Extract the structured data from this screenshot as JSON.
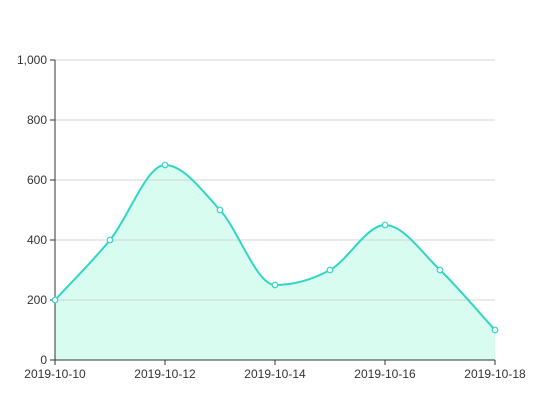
{
  "chart_data": {
    "type": "area",
    "title": "",
    "xlabel": "",
    "ylabel": "",
    "x": [
      "2019-10-10",
      "2019-10-11",
      "2019-10-12",
      "2019-10-13",
      "2019-10-14",
      "2019-10-15",
      "2019-10-16",
      "2019-10-17",
      "2019-10-18"
    ],
    "series": [
      {
        "values": [
          200,
          400,
          650,
          500,
          250,
          300,
          450,
          300,
          100
        ]
      }
    ],
    "x_tick_labels": [
      "2019-10-10",
      "2019-10-12",
      "2019-10-14",
      "2019-10-16",
      "2019-10-18"
    ],
    "y_tick_labels": [
      "0",
      "200",
      "400",
      "600",
      "800",
      "1,000"
    ],
    "ylim": [
      0,
      1000
    ],
    "y_ticks": [
      0,
      200,
      400,
      600,
      800,
      1000
    ],
    "grid": true,
    "smooth": true,
    "colors": {
      "line": "#2fd6c4",
      "fill": "#d9fcf1",
      "grid": "#d4d4d4",
      "axis": "#333333"
    }
  }
}
